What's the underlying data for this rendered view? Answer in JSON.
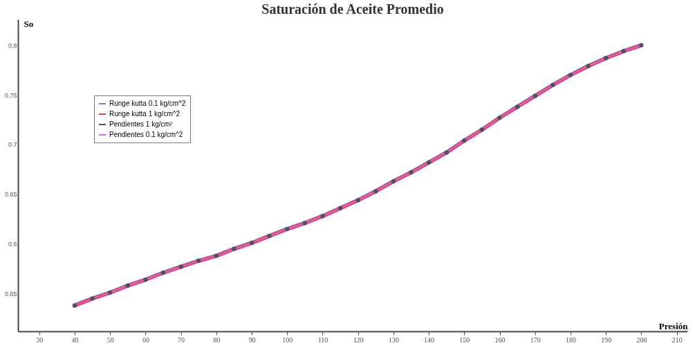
{
  "chart_data": {
    "type": "line",
    "title": "Saturación de Aceite Promedio",
    "xlabel": "Presión",
    "ylabel": "So",
    "x": [
      40,
      45,
      50,
      55,
      60,
      65,
      70,
      75,
      80,
      85,
      90,
      95,
      100,
      105,
      110,
      115,
      120,
      125,
      130,
      135,
      140,
      145,
      150,
      155,
      160,
      165,
      170,
      175,
      180,
      185,
      190,
      195,
      200
    ],
    "series": [
      {
        "name": "Runge kutta 0.1 kg/cm^2",
        "color": "#7878e8",
        "marker": "none",
        "values": [
          0.538,
          0.545,
          0.551,
          0.558,
          0.564,
          0.571,
          0.577,
          0.583,
          0.588,
          0.595,
          0.601,
          0.608,
          0.615,
          0.621,
          0.628,
          0.636,
          0.644,
          0.653,
          0.663,
          0.672,
          0.682,
          0.692,
          0.704,
          0.715,
          0.727,
          0.738,
          0.749,
          0.76,
          0.77,
          0.779,
          0.787,
          0.794,
          0.8
        ]
      },
      {
        "name": "Runge kutta 1 kg/cm^2",
        "color": "#e84848",
        "marker": "none",
        "values": [
          0.538,
          0.545,
          0.551,
          0.558,
          0.564,
          0.571,
          0.577,
          0.583,
          0.588,
          0.595,
          0.601,
          0.608,
          0.615,
          0.621,
          0.628,
          0.636,
          0.644,
          0.653,
          0.663,
          0.672,
          0.682,
          0.692,
          0.704,
          0.715,
          0.727,
          0.738,
          0.749,
          0.76,
          0.77,
          0.779,
          0.787,
          0.794,
          0.8
        ]
      },
      {
        "name": "Pendientes 1 kg/cm²",
        "type": "scatter",
        "color": "#505060",
        "marker": "circle",
        "values": [
          0.538,
          0.545,
          0.551,
          0.558,
          0.564,
          0.571,
          0.577,
          0.583,
          0.588,
          0.595,
          0.601,
          0.608,
          0.615,
          0.621,
          0.628,
          0.636,
          0.644,
          0.653,
          0.663,
          0.672,
          0.682,
          0.692,
          0.704,
          0.715,
          0.727,
          0.738,
          0.749,
          0.76,
          0.77,
          0.779,
          0.787,
          0.794,
          0.8
        ]
      },
      {
        "name": "Pendientes 0.1 kg/cm^2",
        "color": "#e860e8",
        "marker": "none",
        "values": [
          0.538,
          0.545,
          0.551,
          0.558,
          0.564,
          0.571,
          0.577,
          0.583,
          0.588,
          0.595,
          0.601,
          0.608,
          0.615,
          0.621,
          0.628,
          0.636,
          0.644,
          0.653,
          0.663,
          0.672,
          0.682,
          0.692,
          0.704,
          0.715,
          0.727,
          0.738,
          0.749,
          0.76,
          0.77,
          0.779,
          0.787,
          0.794,
          0.8
        ]
      }
    ],
    "xlim": [
      24,
      213
    ],
    "xticks": [
      30,
      40,
      50,
      60,
      70,
      80,
      90,
      100,
      110,
      120,
      130,
      140,
      150,
      160,
      170,
      180,
      190,
      200,
      210
    ],
    "ylim": [
      0.512,
      0.826
    ],
    "yticks": [
      0.55,
      0.6,
      0.65,
      0.7,
      0.75,
      0.8
    ],
    "grid": false,
    "legend": "top left"
  }
}
